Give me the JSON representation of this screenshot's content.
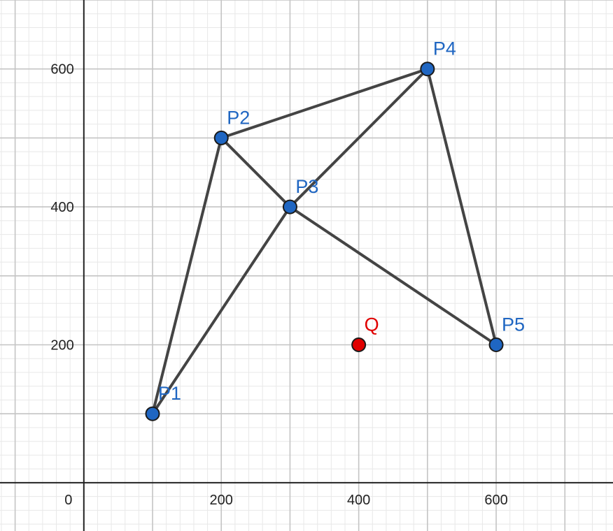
{
  "chart_data": {
    "type": "scatter",
    "title": "",
    "xlabel": "",
    "ylabel": "",
    "xlim": [
      -122,
      770
    ],
    "ylim": [
      -70,
      700
    ],
    "grid": true,
    "minor_grid_step": 20,
    "major_grid_step": 100,
    "x_ticks": [
      {
        "value": 0,
        "label": "0"
      },
      {
        "value": 200,
        "label": "200"
      },
      {
        "value": 400,
        "label": "400"
      },
      {
        "value": 600,
        "label": "600"
      }
    ],
    "y_ticks": [
      {
        "value": 200,
        "label": "200"
      },
      {
        "value": 400,
        "label": "400"
      },
      {
        "value": 600,
        "label": "600"
      }
    ],
    "points": [
      {
        "id": "P1",
        "label": "P1",
        "x": 100,
        "y": 100,
        "color": "#1f66c2"
      },
      {
        "id": "P2",
        "label": "P2",
        "x": 200,
        "y": 500,
        "color": "#1f66c2"
      },
      {
        "id": "P3",
        "label": "P3",
        "x": 300,
        "y": 400,
        "color": "#1f66c2"
      },
      {
        "id": "P4",
        "label": "P4",
        "x": 500,
        "y": 600,
        "color": "#1f66c2"
      },
      {
        "id": "P5",
        "label": "P5",
        "x": 600,
        "y": 200,
        "color": "#1f66c2"
      },
      {
        "id": "Q",
        "label": "Q",
        "x": 400,
        "y": 200,
        "color": "#e00000"
      }
    ],
    "edges": [
      [
        "P1",
        "P2"
      ],
      [
        "P1",
        "P3"
      ],
      [
        "P2",
        "P3"
      ],
      [
        "P2",
        "P4"
      ],
      [
        "P3",
        "P4"
      ],
      [
        "P3",
        "P5"
      ],
      [
        "P4",
        "P5"
      ]
    ],
    "edge_color": "#444444",
    "label_colors": {
      "P": "#1f66c2",
      "Q": "#e00000"
    }
  }
}
